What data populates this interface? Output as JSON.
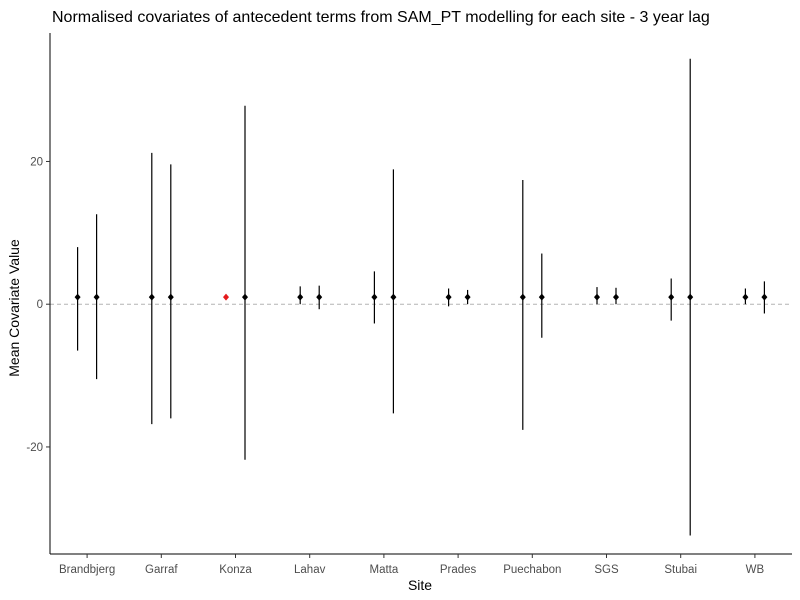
{
  "chart_data": {
    "type": "scatter",
    "title": "Normalised covariates of antecedent terms from SAM_PT modelling for each site - 3 year lag",
    "xlabel": "Site",
    "ylabel": "Mean Covariate Value",
    "ylim": [
      -35,
      38
    ],
    "yticks": [
      -20,
      0,
      20
    ],
    "reference_line": 0,
    "grid": false,
    "categories": [
      "Brandbjerg",
      "Garraf",
      "Konza",
      "Lahav",
      "Matta",
      "Prades",
      "Puechabon",
      "SGS",
      "Stubai",
      "WB"
    ],
    "points": [
      {
        "site": "Brandbjerg",
        "slot": 0,
        "mean": 1.0,
        "lower": -6.5,
        "upper": 8.0,
        "color": "#000000"
      },
      {
        "site": "Brandbjerg",
        "slot": 1,
        "mean": 1.0,
        "lower": -10.5,
        "upper": 12.6,
        "color": "#000000"
      },
      {
        "site": "Garraf",
        "slot": 0,
        "mean": 1.0,
        "lower": -16.8,
        "upper": 21.2,
        "color": "#000000"
      },
      {
        "site": "Garraf",
        "slot": 1,
        "mean": 1.0,
        "lower": -16.0,
        "upper": 19.6,
        "color": "#000000"
      },
      {
        "site": "Konza",
        "slot": 0,
        "mean": 1.0,
        "lower": 1.0,
        "upper": 1.0,
        "color": "#e41a1c"
      },
      {
        "site": "Konza",
        "slot": 1,
        "mean": 1.0,
        "lower": -21.8,
        "upper": 27.8,
        "color": "#000000"
      },
      {
        "site": "Lahav",
        "slot": 0,
        "mean": 1.0,
        "lower": 0.0,
        "upper": 2.5,
        "color": "#000000"
      },
      {
        "site": "Lahav",
        "slot": 1,
        "mean": 1.0,
        "lower": -0.7,
        "upper": 2.6,
        "color": "#000000"
      },
      {
        "site": "Matta",
        "slot": 0,
        "mean": 1.0,
        "lower": -2.7,
        "upper": 4.6,
        "color": "#000000"
      },
      {
        "site": "Matta",
        "slot": 1,
        "mean": 1.0,
        "lower": -15.3,
        "upper": 18.9,
        "color": "#000000"
      },
      {
        "site": "Prades",
        "slot": 0,
        "mean": 1.0,
        "lower": -0.3,
        "upper": 2.2,
        "color": "#000000"
      },
      {
        "site": "Prades",
        "slot": 1,
        "mean": 1.0,
        "lower": 0.0,
        "upper": 2.0,
        "color": "#000000"
      },
      {
        "site": "Puechabon",
        "slot": 0,
        "mean": 1.0,
        "lower": -17.6,
        "upper": 17.4,
        "color": "#000000"
      },
      {
        "site": "Puechabon",
        "slot": 1,
        "mean": 1.0,
        "lower": -4.7,
        "upper": 7.1,
        "color": "#000000"
      },
      {
        "site": "SGS",
        "slot": 0,
        "mean": 1.0,
        "lower": 0.0,
        "upper": 2.4,
        "color": "#000000"
      },
      {
        "site": "SGS",
        "slot": 1,
        "mean": 1.0,
        "lower": 0.0,
        "upper": 2.3,
        "color": "#000000"
      },
      {
        "site": "Stubai",
        "slot": 0,
        "mean": 1.0,
        "lower": -2.3,
        "upper": 3.6,
        "color": "#000000"
      },
      {
        "site": "Stubai",
        "slot": 1,
        "mean": 1.0,
        "lower": -32.4,
        "upper": 34.4,
        "color": "#000000"
      },
      {
        "site": "WB",
        "slot": 0,
        "mean": 1.0,
        "lower": 0.0,
        "upper": 2.2,
        "color": "#000000"
      },
      {
        "site": "WB",
        "slot": 1,
        "mean": 1.0,
        "lower": -1.3,
        "upper": 3.2,
        "color": "#000000"
      }
    ]
  }
}
